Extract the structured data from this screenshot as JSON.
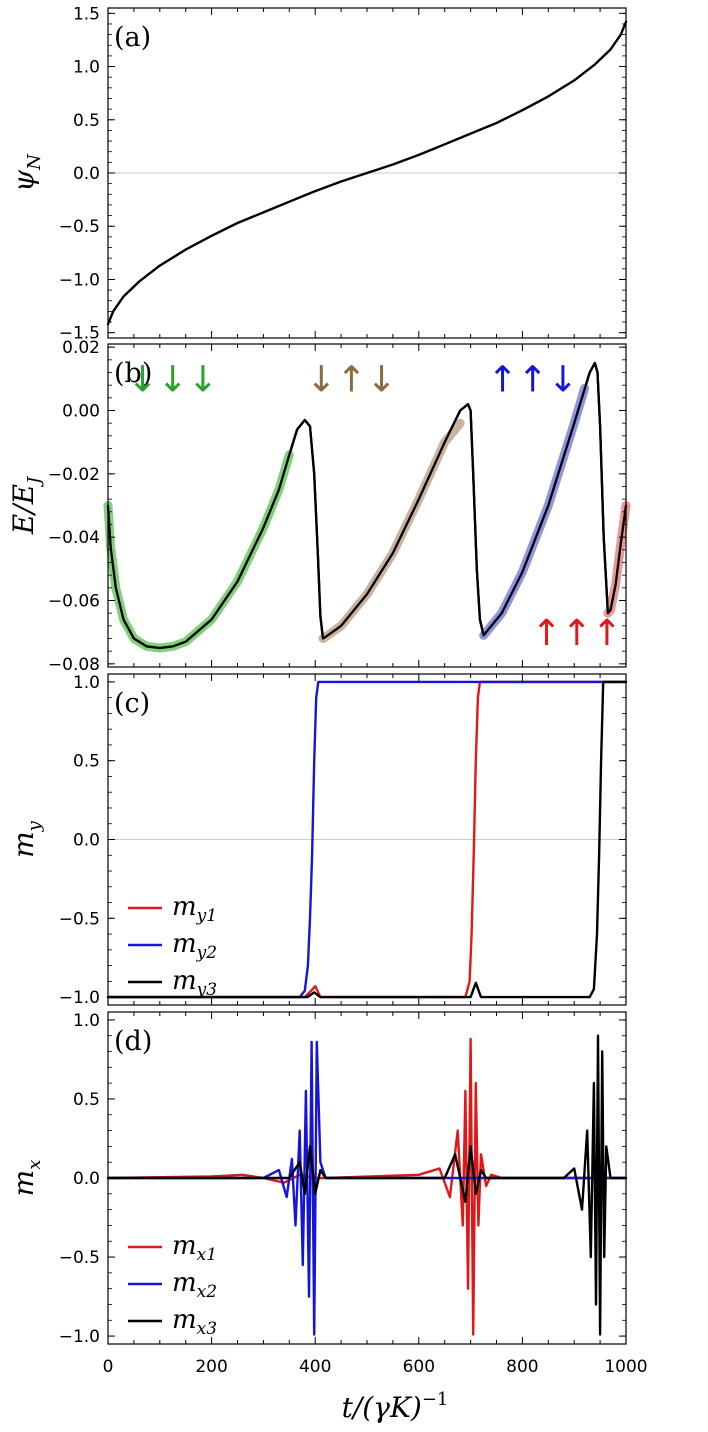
{
  "figure": {
    "xlabel": "t/(γK)",
    "xlabel_sup": "−1"
  },
  "chart_data": [
    {
      "id": "a",
      "type": "line",
      "panel_label": "(a)",
      "ylabel_main": "ψ",
      "ylabel_sub": "N",
      "xlim": [
        0,
        1000
      ],
      "ylim": [
        -1.55,
        1.55
      ],
      "yticks": [
        -1.5,
        -1.0,
        -0.5,
        0.0,
        0.5,
        1.0,
        1.5
      ],
      "ytick_labels": [
        "−1.5",
        "−1.0",
        "−0.5",
        "0.0",
        "0.5",
        "1.0",
        "1.5"
      ],
      "zero_line": true,
      "series": [
        {
          "name": "ψN",
          "color": "#000000",
          "x": [
            0,
            10,
            30,
            60,
            100,
            150,
            200,
            250,
            300,
            350,
            400,
            450,
            500,
            550,
            600,
            650,
            700,
            750,
            800,
            850,
            900,
            940,
            970,
            990,
            1000
          ],
          "y": [
            -1.42,
            -1.3,
            -1.16,
            -1.02,
            -0.87,
            -0.72,
            -0.59,
            -0.47,
            -0.37,
            -0.27,
            -0.17,
            -0.08,
            0.0,
            0.08,
            0.17,
            0.27,
            0.37,
            0.47,
            0.59,
            0.72,
            0.87,
            1.02,
            1.16,
            1.3,
            1.42
          ]
        }
      ]
    },
    {
      "id": "b",
      "type": "line",
      "panel_label": "(b)",
      "ylabel_main": "E/E",
      "ylabel_sub": "J",
      "xlim": [
        0,
        1000
      ],
      "ylim": [
        -0.081,
        0.021
      ],
      "yticks": [
        -0.08,
        -0.06,
        -0.04,
        -0.02,
        0.0,
        0.02
      ],
      "ytick_labels": [
        "−0.08",
        "−0.06",
        "−0.04",
        "−0.02",
        "0.00",
        "0.02"
      ],
      "zero_line": false,
      "series": [
        {
          "name": "E",
          "color": "#000000",
          "x": [
            0,
            5,
            15,
            30,
            50,
            75,
            100,
            125,
            150,
            200,
            250,
            300,
            330,
            350,
            365,
            380,
            390,
            398,
            405,
            410,
            415,
            420,
            450,
            500,
            550,
            600,
            650,
            680,
            695,
            700,
            705,
            712,
            718,
            725,
            760,
            800,
            850,
            900,
            930,
            940,
            945,
            950,
            957,
            965,
            970,
            980,
            990,
            1000
          ],
          "y": [
            -0.03,
            -0.043,
            -0.056,
            -0.066,
            -0.072,
            -0.0745,
            -0.075,
            -0.0745,
            -0.073,
            -0.066,
            -0.054,
            -0.037,
            -0.025,
            -0.014,
            -0.006,
            -0.003,
            -0.005,
            -0.02,
            -0.045,
            -0.065,
            -0.072,
            -0.0715,
            -0.068,
            -0.058,
            -0.045,
            -0.028,
            -0.01,
            0.0,
            0.002,
            0.0,
            -0.02,
            -0.05,
            -0.066,
            -0.071,
            -0.064,
            -0.051,
            -0.03,
            -0.004,
            0.012,
            0.015,
            0.012,
            -0.005,
            -0.04,
            -0.064,
            -0.063,
            -0.055,
            -0.042,
            -0.03
          ]
        },
        {
          "name": "↓↓↓",
          "color": "#5bbf50",
          "highlight": true,
          "x": [
            0,
            5,
            15,
            30,
            50,
            75,
            100,
            125,
            150,
            200,
            250,
            300,
            330,
            350
          ],
          "y": [
            -0.03,
            -0.043,
            -0.056,
            -0.066,
            -0.072,
            -0.0745,
            -0.075,
            -0.0745,
            -0.073,
            -0.066,
            -0.054,
            -0.037,
            -0.025,
            -0.014
          ]
        },
        {
          "name": "↓↑↓",
          "color": "#b89a7e",
          "highlight": true,
          "x": [
            415,
            420,
            450,
            500,
            550,
            600,
            650,
            680
          ],
          "y": [
            -0.072,
            -0.0715,
            -0.068,
            -0.058,
            -0.045,
            -0.028,
            -0.01,
            -0.004
          ]
        },
        {
          "name": "↑↑↓",
          "color": "#6d70d6",
          "highlight": true,
          "x": [
            725,
            760,
            800,
            850,
            900,
            920
          ],
          "y": [
            -0.071,
            -0.064,
            -0.051,
            -0.03,
            -0.004,
            0.007
          ]
        },
        {
          "name": "↑↑↑",
          "color": "#e27575",
          "highlight": true,
          "x": [
            965,
            970,
            980,
            990,
            1000
          ],
          "y": [
            -0.064,
            -0.063,
            -0.055,
            -0.042,
            -0.03
          ]
        }
      ],
      "annotations": [
        {
          "text": "↓↓↓",
          "color": "#2ca02c",
          "x": 125,
          "y": 0.006
        },
        {
          "text": "↓↑↓",
          "color": "#8b6a45",
          "x": 470,
          "y": 0.006
        },
        {
          "text": "↑↑↓",
          "color": "#1515d8",
          "x": 820,
          "y": 0.006
        },
        {
          "text": "↑↑↑",
          "color": "#e01818",
          "x": 905,
          "y": -0.074
        }
      ]
    },
    {
      "id": "c",
      "type": "line",
      "panel_label": "(c)",
      "ylabel_main": "m",
      "ylabel_sub": "y",
      "xlim": [
        0,
        1000
      ],
      "ylim": [
        -1.05,
        1.05
      ],
      "yticks": [
        -1.0,
        -0.5,
        0.0,
        0.5,
        1.0
      ],
      "ytick_labels": [
        "−1.0",
        "−0.5",
        "0.0",
        "0.5",
        "1.0"
      ],
      "zero_line": true,
      "legend": {
        "position": "bottom-left"
      },
      "series": [
        {
          "name": "m",
          "sub": "y1",
          "color": "#e01818",
          "x": [
            0,
            380,
            395,
            400,
            410,
            690,
            698,
            702,
            706,
            710,
            714,
            718,
            1000
          ],
          "y": [
            -1,
            -1,
            -0.95,
            -0.93,
            -1,
            -1,
            -0.9,
            -0.6,
            -0.1,
            0.5,
            0.9,
            1,
            1
          ]
        },
        {
          "name": "m",
          "sub": "y2",
          "color": "#1515d8",
          "x": [
            0,
            370,
            380,
            386,
            390,
            394,
            398,
            402,
            406,
            1000
          ],
          "y": [
            -1,
            -1,
            -0.96,
            -0.8,
            -0.5,
            -0.1,
            0.5,
            0.9,
            1,
            1
          ]
        },
        {
          "name": "m",
          "sub": "y3",
          "color": "#000000",
          "x": [
            0,
            385,
            398,
            410,
            700,
            710,
            720,
            930,
            938,
            944,
            948,
            952,
            956,
            1000
          ],
          "y": [
            -1,
            -1,
            -0.97,
            -1,
            -1,
            -0.91,
            -1,
            -1,
            -0.95,
            -0.6,
            -0.1,
            0.5,
            1,
            1
          ]
        }
      ]
    },
    {
      "id": "d",
      "type": "line",
      "panel_label": "(d)",
      "ylabel_main": "m",
      "ylabel_sub": "x",
      "xlim": [
        0,
        1000
      ],
      "ylim": [
        -1.05,
        1.05
      ],
      "yticks": [
        -1.0,
        -0.5,
        0.0,
        0.5,
        1.0
      ],
      "ytick_labels": [
        "−1.0",
        "−0.5",
        "0.0",
        "0.5",
        "1.0"
      ],
      "zero_line": false,
      "legend": {
        "position": "bottom-left"
      },
      "series": [
        {
          "name": "m",
          "sub": "x1",
          "color": "#e01818",
          "x": [
            0,
            200,
            260,
            300,
            340,
            370,
            400,
            420,
            600,
            640,
            660,
            675,
            685,
            690,
            695,
            700,
            705,
            710,
            715,
            720,
            730,
            740,
            760,
            1000
          ],
          "y": [
            0,
            0.01,
            0.02,
            0.0,
            -0.03,
            0.02,
            0.0,
            0.0,
            0.02,
            0.06,
            -0.12,
            0.3,
            -0.3,
            0.55,
            -0.7,
            0.88,
            -0.99,
            0.6,
            -0.3,
            0.15,
            -0.05,
            0.02,
            0.0,
            0.0
          ]
        },
        {
          "name": "m",
          "sub": "x2",
          "color": "#1515d8",
          "x": [
            0,
            300,
            330,
            345,
            355,
            362,
            370,
            376,
            382,
            388,
            393,
            398,
            403,
            410,
            420,
            1000
          ],
          "y": [
            0,
            0.0,
            0.05,
            -0.12,
            0.12,
            -0.3,
            0.3,
            -0.55,
            0.55,
            -0.75,
            0.86,
            -0.99,
            0.86,
            0.1,
            0.0,
            0.0
          ]
        },
        {
          "name": "m",
          "sub": "x3",
          "color": "#000000",
          "x": [
            0,
            350,
            370,
            380,
            390,
            400,
            410,
            420,
            650,
            670,
            690,
            700,
            710,
            720,
            730,
            880,
            900,
            915,
            925,
            932,
            938,
            942,
            946,
            950,
            954,
            958,
            962,
            970,
            1000
          ],
          "y": [
            0,
            0.0,
            0.1,
            -0.1,
            0.2,
            -0.1,
            0.05,
            0.0,
            0.0,
            0.15,
            -0.15,
            0.2,
            -0.1,
            0.05,
            0.0,
            0.0,
            0.06,
            -0.2,
            0.3,
            -0.5,
            0.6,
            -0.8,
            0.9,
            -0.99,
            0.8,
            -0.5,
            0.2,
            0.0,
            0.0
          ]
        }
      ]
    }
  ],
  "xaxis": {
    "ticks": [
      0,
      200,
      400,
      600,
      800,
      1000
    ],
    "tick_labels": [
      "0",
      "200",
      "400",
      "600",
      "800",
      "1000"
    ]
  }
}
